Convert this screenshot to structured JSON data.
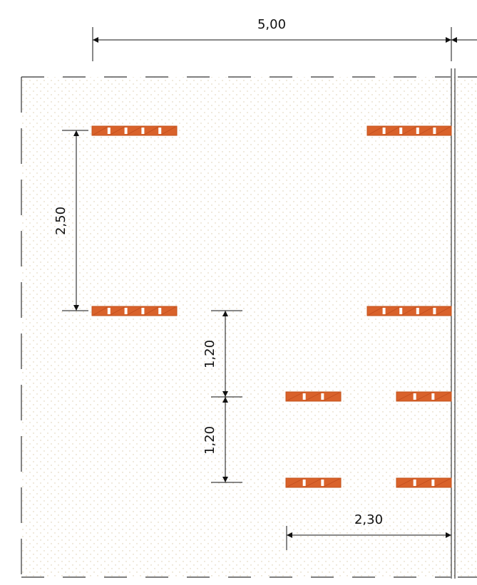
{
  "dimensions": {
    "top_width": "5,00",
    "left_spacing": "2,50",
    "spacing_upper": "1,20",
    "spacing_lower": "1,20",
    "bottom_width": "2,30"
  },
  "colors": {
    "block_fill": "#d9622b",
    "block_stroke": "#c2521a",
    "block_slot": "#ffffff",
    "line": "#111111",
    "dot": "#d8c9a8"
  },
  "blocks": [
    {
      "id": "top-left",
      "slots": 4
    },
    {
      "id": "top-right",
      "slots": 4
    },
    {
      "id": "mid-left",
      "slots": 4
    },
    {
      "id": "mid-right",
      "slots": 4
    },
    {
      "id": "small-1",
      "slots": 2
    },
    {
      "id": "small-2",
      "slots": 2
    },
    {
      "id": "small-3",
      "slots": 2
    },
    {
      "id": "small-4",
      "slots": 2
    }
  ]
}
